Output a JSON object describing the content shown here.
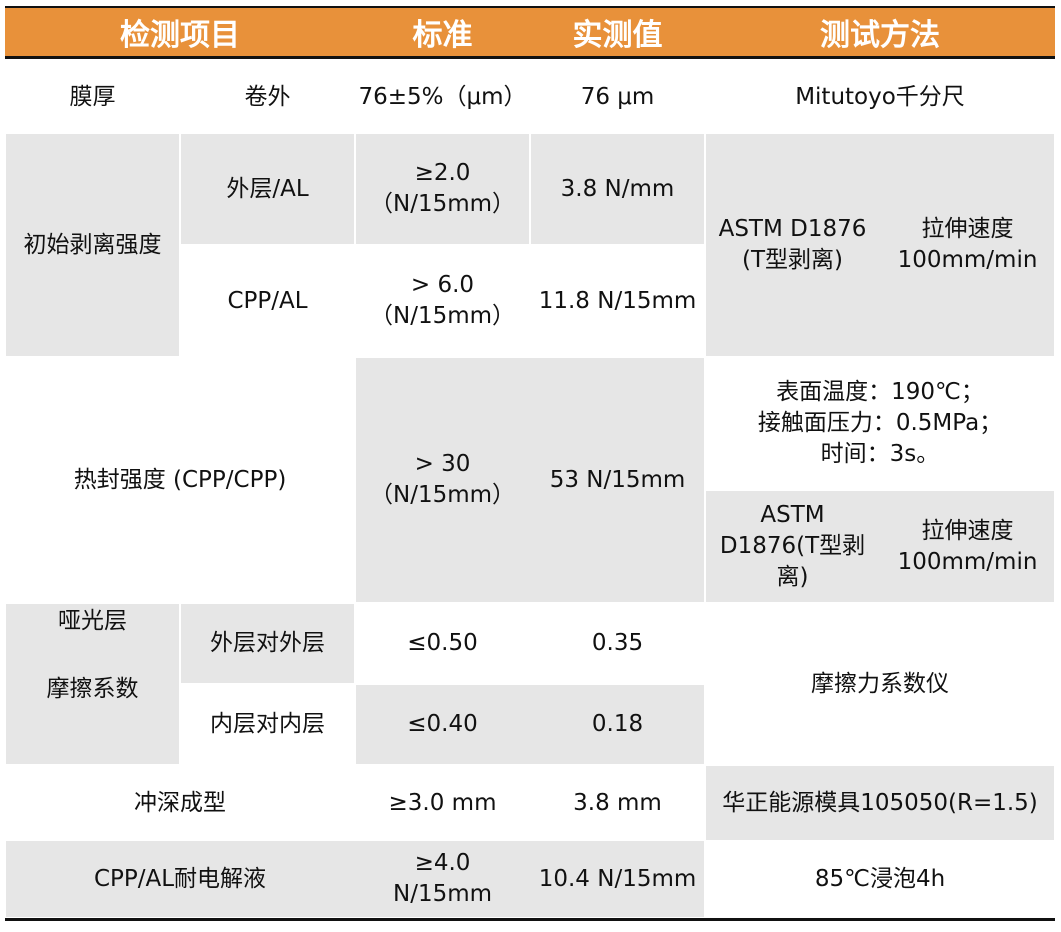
{
  "colors": {
    "header_bg": "#e8913a",
    "gray_cell": "#e6e6e6"
  },
  "header": [
    "检测项目",
    "标准",
    "实测值",
    "测试方法"
  ],
  "rows": {
    "thickness": {
      "item": "膜厚",
      "sub": "卷外",
      "standard": "76±5%（μm）",
      "value": "76 μm",
      "method": "Mitutoyo千分尺"
    },
    "peel": {
      "item": "初始剥离强度",
      "sub1": "外层/AL",
      "std1": "≥2.0\n（N/15mm）",
      "val1": "3.8 N/mm",
      "sub2": "CPP/AL",
      "std2": "> 6.0\n（N/15mm）",
      "val2": "11.8 N/15mm",
      "method_a": "ASTM D1876\n(T型剥离)",
      "method_b": "拉伸速度\n100mm/min"
    },
    "heatseal": {
      "item": "热封强度 (CPP/CPP)",
      "standard": "> 30\n（N/15mm）",
      "value": "53 N/15mm",
      "condition": "表面温度：190℃；\n接触面压力：0.5MPa；\n时间：3s。",
      "method_a": "ASTM\nD1876(T型剥\n离)",
      "method_b": "拉伸速度\n100mm/min"
    },
    "friction": {
      "item": "哑光层\n\n摩擦系数",
      "sub1": "外层对外层",
      "std1": "≤0.50",
      "val1": "0.35",
      "sub2": "内层对内层",
      "std2": "≤0.40",
      "val2": "0.18",
      "method": "摩擦力系数仪"
    },
    "drawing": {
      "item": "冲深成型",
      "standard": "≥3.0 mm",
      "value": "3.8 mm",
      "method": "华正能源模具105050(R=1.5)"
    },
    "electrolyte": {
      "item": "CPP/AL耐电解液",
      "standard": "≥4.0\nN/15mm",
      "value": "10.4 N/15mm",
      "method": "85℃浸泡4h"
    }
  }
}
